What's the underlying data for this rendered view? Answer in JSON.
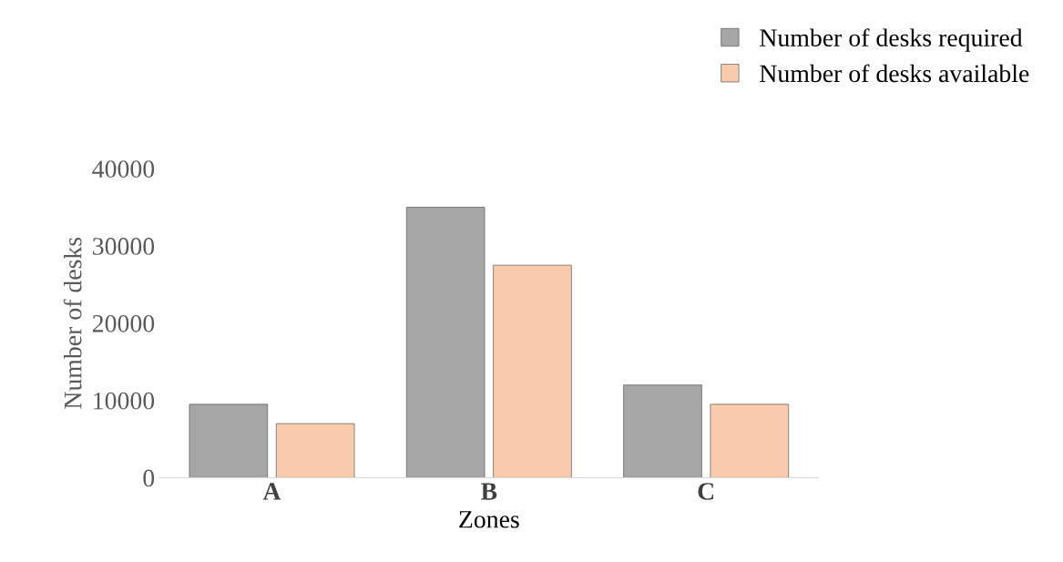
{
  "chart_data": {
    "type": "bar",
    "xlabel": "Zones",
    "ylabel": "Number of desks",
    "categories": [
      "A",
      "B",
      "C"
    ],
    "series": [
      {
        "name": "Number of desks required",
        "color": "#a6a6a6",
        "values": [
          9500,
          35000,
          12000
        ]
      },
      {
        "name": "Number of desks available",
        "color": "#f8cbad",
        "values": [
          7000,
          27500,
          9500
        ]
      }
    ],
    "ylim": [
      0,
      40000
    ],
    "yticks": [
      0,
      10000,
      20000,
      30000,
      40000
    ],
    "grid": false,
    "legend": "top right"
  }
}
